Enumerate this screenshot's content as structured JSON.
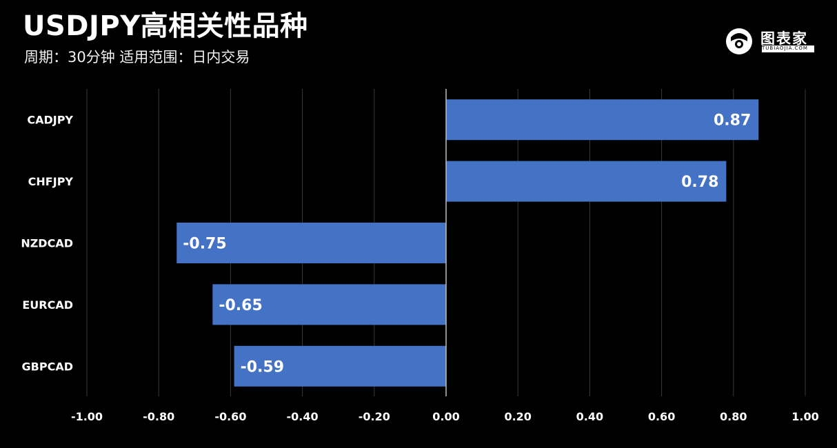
{
  "header": {
    "title": "USDJPY高相关性品种",
    "subtitle": "周期：30分钟  适用范围：日内交易"
  },
  "logo": {
    "text": "图表家",
    "subtext": "TUBIAOJIA.COM"
  },
  "colors": {
    "background": "#000000",
    "bar": "#4472c4",
    "grid": "#3a3a3a",
    "zero_line": "#bfbfbf",
    "text": "#ffffff"
  },
  "chart_data": {
    "type": "bar",
    "orientation": "horizontal",
    "categories": [
      "CADJPY",
      "CHFJPY",
      "NZDCAD",
      "EURCAD",
      "GBPCAD"
    ],
    "values": [
      0.87,
      0.78,
      -0.75,
      -0.65,
      -0.59
    ],
    "data_labels": [
      "0.87",
      "0.78",
      "-0.75",
      "-0.65",
      "-0.59"
    ],
    "xlim": [
      -1.0,
      1.0
    ],
    "xticks": [
      -1.0,
      -0.8,
      -0.6,
      -0.4,
      -0.2,
      0.0,
      0.2,
      0.4,
      0.6,
      0.8,
      1.0
    ],
    "xtick_labels": [
      "-1.00",
      "-0.80",
      "-0.60",
      "-0.40",
      "-0.20",
      "0.00",
      "0.20",
      "0.40",
      "0.60",
      "0.80",
      "1.00"
    ],
    "grid": "vertical",
    "legend": "none"
  }
}
